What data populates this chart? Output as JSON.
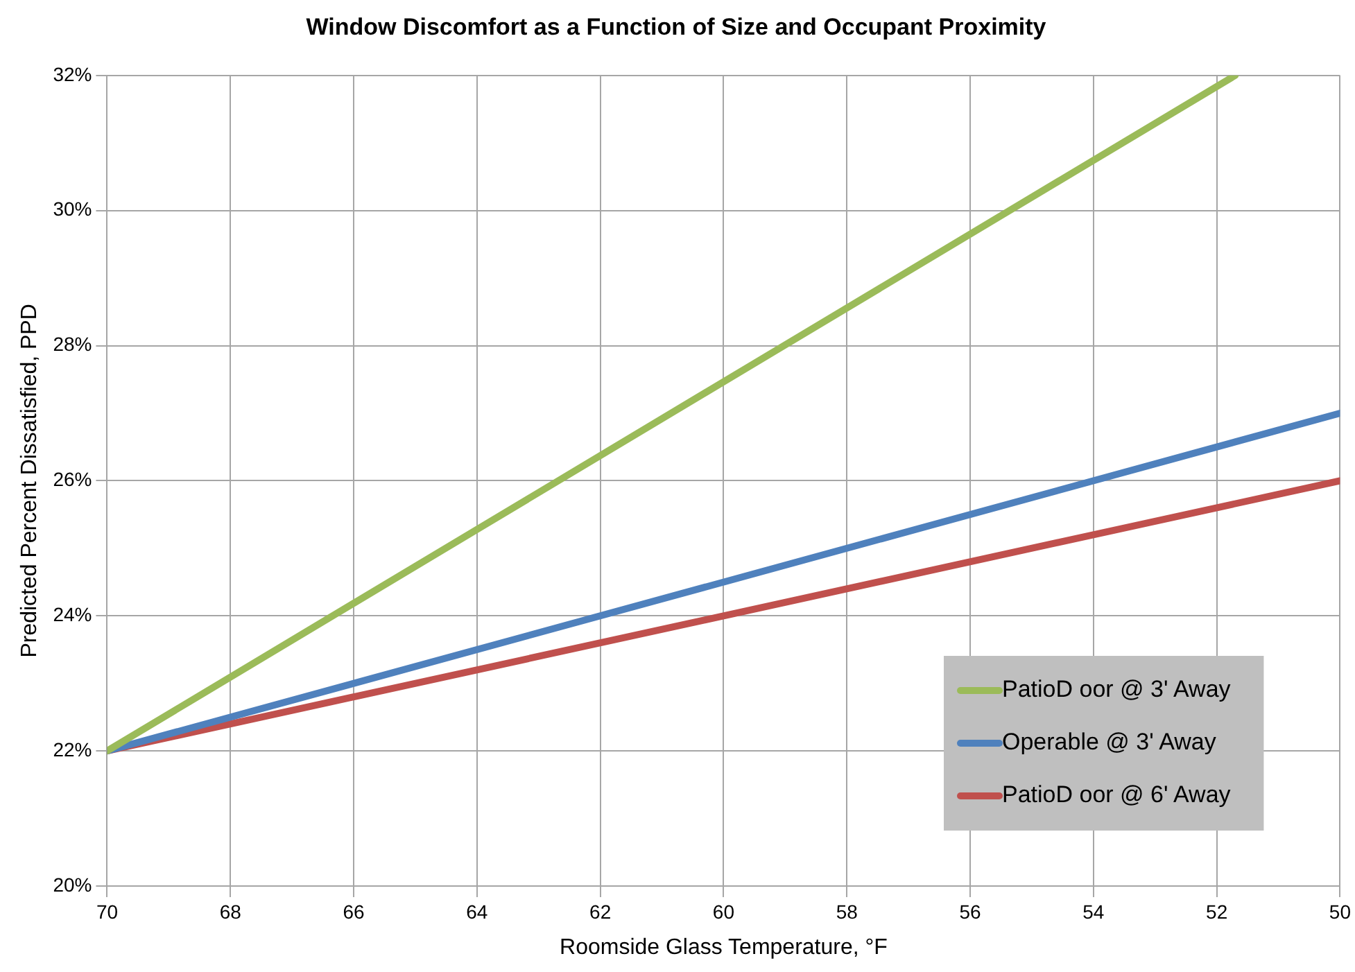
{
  "chart_data": {
    "type": "line",
    "title": "Window Discomfort as a Function of Size and Occupant Proximity",
    "xlabel": "Roomside Glass Temperature, °F",
    "ylabel": "Predicted Percent Dissatisfied, PPD",
    "xlim": [
      70,
      50
    ],
    "xticks": [
      70,
      68,
      66,
      64,
      62,
      60,
      58,
      56,
      54,
      52,
      50
    ],
    "ylim": [
      20,
      32
    ],
    "yticks": [
      {
        "value": 20,
        "label": "20%"
      },
      {
        "value": 22,
        "label": "22%"
      },
      {
        "value": 24,
        "label": "24%"
      },
      {
        "value": 26,
        "label": "26%"
      },
      {
        "value": 28,
        "label": "28%"
      },
      {
        "value": 30,
        "label": "30%"
      },
      {
        "value": 32,
        "label": "32%"
      }
    ],
    "grid": true,
    "legend": "bottom right",
    "marker": "none",
    "line_style": "solid",
    "series": [
      {
        "name": "PatioD oor @ 3' Away",
        "color": "#9bbb59",
        "x": [
          70,
          51.7
        ],
        "values": [
          22,
          32
        ]
      },
      {
        "name": "Operable @ 3' Away",
        "color": "#4f81bd",
        "x": [
          70,
          50
        ],
        "values": [
          22,
          27
        ]
      },
      {
        "name": "PatioD oor @ 6' Away",
        "color": "#c0504d",
        "x": [
          70,
          50
        ],
        "values": [
          22,
          26
        ]
      }
    ]
  }
}
